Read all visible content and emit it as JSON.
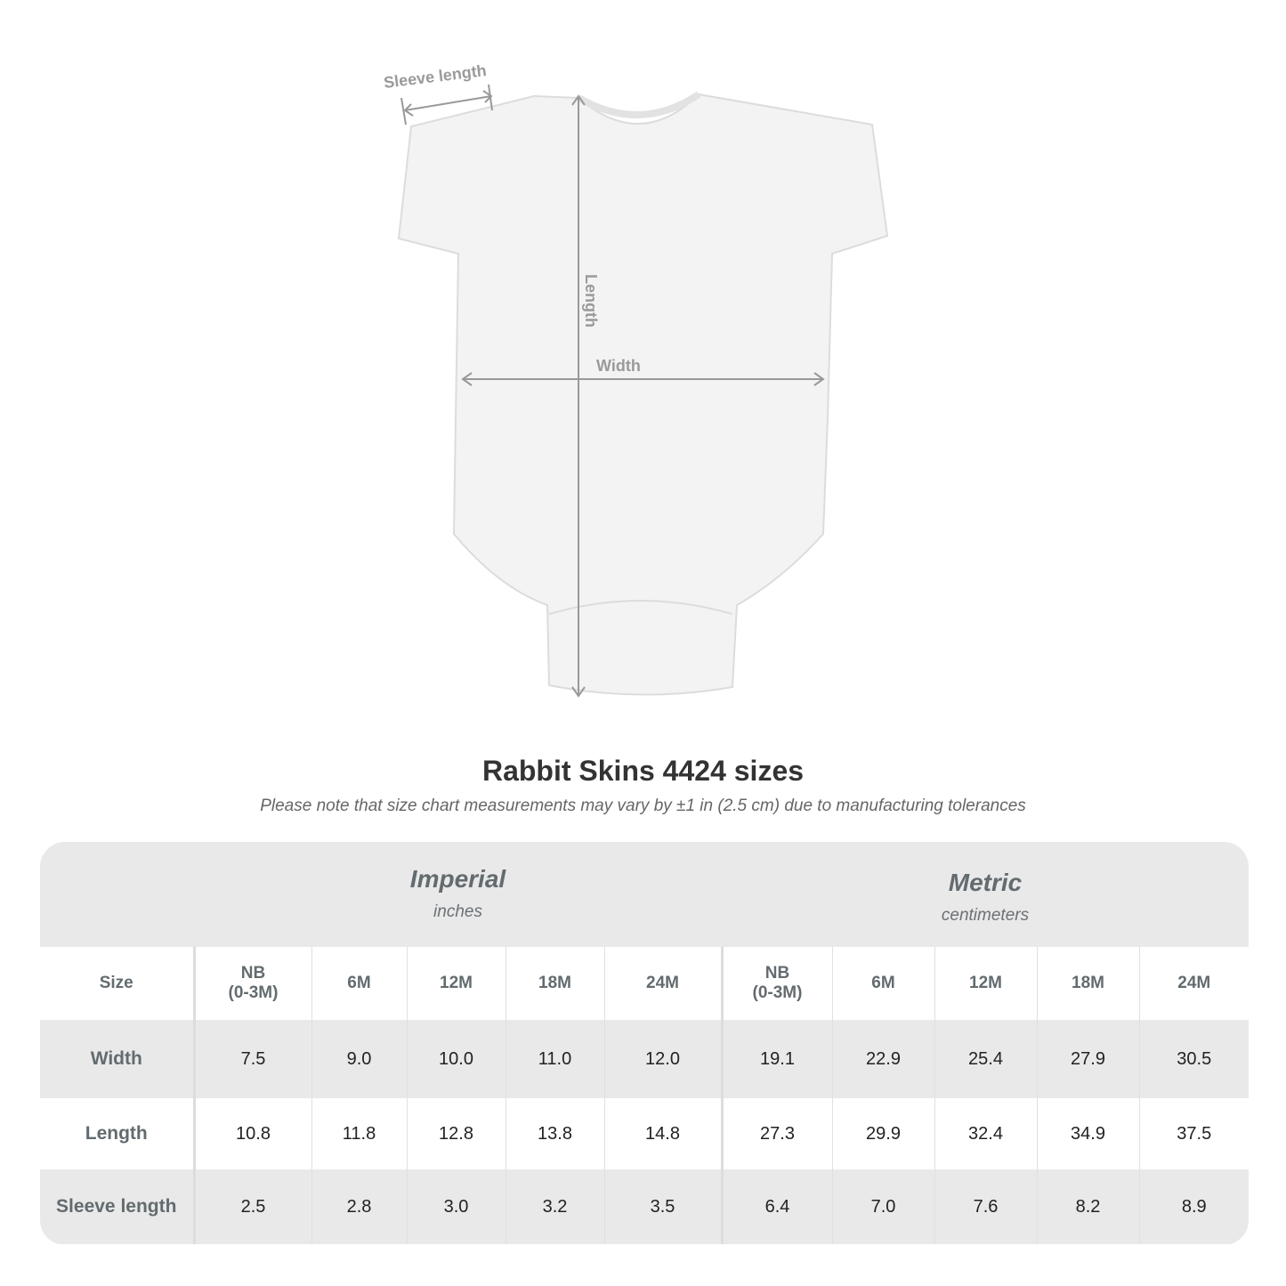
{
  "illustration": {
    "labels": {
      "sleeve": "Sleeve length",
      "length": "Length",
      "width": "Width"
    }
  },
  "title": "Rabbit Skins 4424 sizes",
  "note": "Please note that size chart measurements may vary by ±1 in (2.5 cm) due to manufacturing tolerances",
  "table": {
    "imperial": {
      "name": "Imperial",
      "unit": "inches"
    },
    "metric": {
      "name": "Metric",
      "unit": "centimeters"
    },
    "size_label": "Size",
    "sizes": [
      "NB (0-3M)",
      "6M",
      "12M",
      "18M",
      "24M"
    ],
    "rows": [
      {
        "label": "Width",
        "imperial": [
          "7.5",
          "9.0",
          "10.0",
          "11.0",
          "12.0"
        ],
        "metric": [
          "19.1",
          "22.9",
          "25.4",
          "27.9",
          "30.5"
        ]
      },
      {
        "label": "Length",
        "imperial": [
          "10.8",
          "11.8",
          "12.8",
          "13.8",
          "14.8"
        ],
        "metric": [
          "27.3",
          "29.9",
          "32.4",
          "34.9",
          "37.5"
        ]
      },
      {
        "label": "Sleeve length",
        "imperial": [
          "2.5",
          "2.8",
          "3.0",
          "3.2",
          "3.5"
        ],
        "metric": [
          "6.4",
          "7.0",
          "7.6",
          "8.2",
          "8.9"
        ]
      }
    ]
  }
}
